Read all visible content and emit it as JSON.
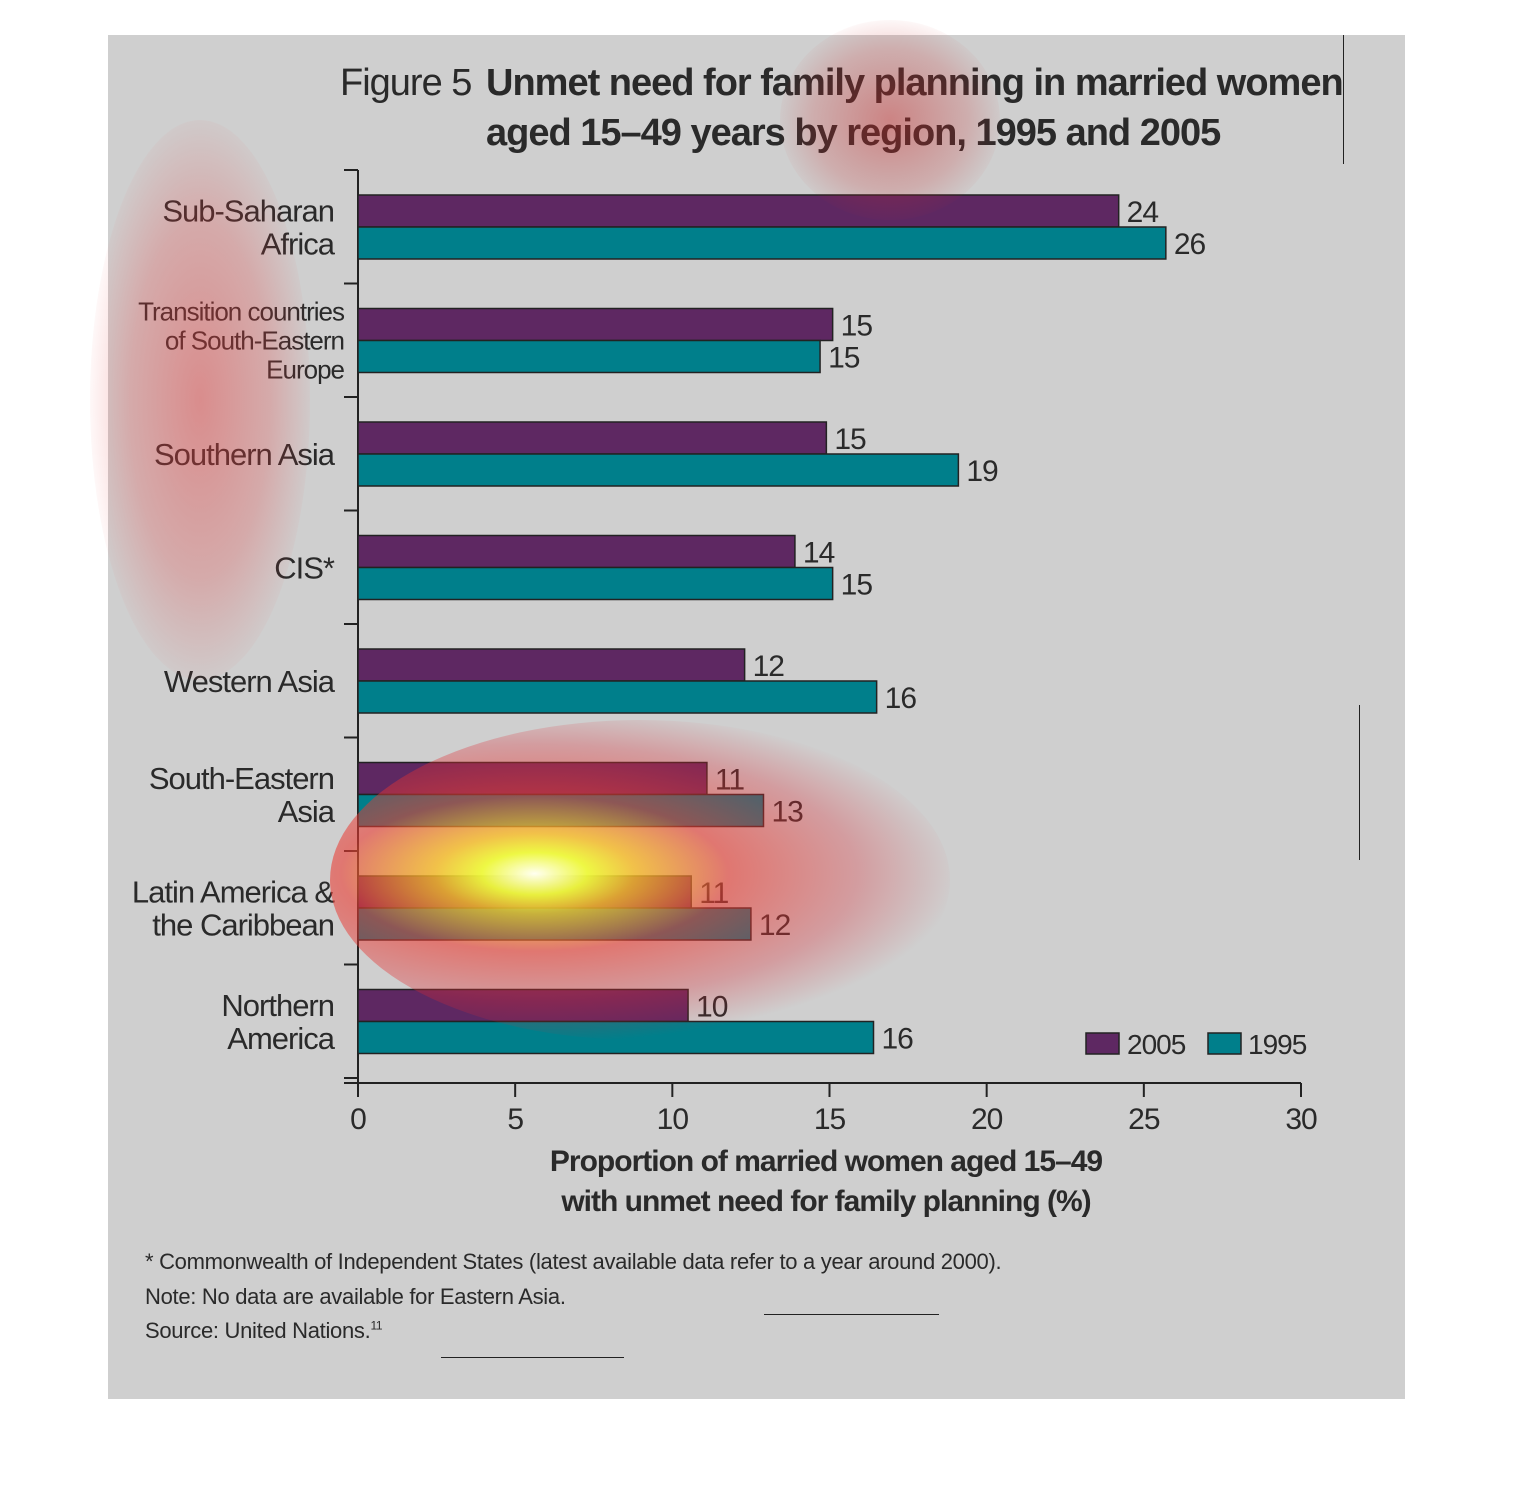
{
  "title": {
    "figure_label": "Figure 5",
    "line1": "Unmet need for family planning in married women",
    "line2": "aged 15–49 years by region, 1995 and 2005"
  },
  "footnotes": {
    "cis": "* Commonwealth of Independent States (latest available data refer to a year around 2000).",
    "note": "Note: No data are available for Eastern Asia.",
    "source": "Source: United Nations.",
    "source_ref": "11"
  },
  "chart_data": {
    "type": "bar",
    "orientation": "horizontal",
    "categories": [
      [
        "Sub-Saharan",
        "Africa"
      ],
      [
        "Transition countries",
        "of South-Eastern",
        "Europe"
      ],
      [
        "Southern Asia"
      ],
      [
        "CIS*"
      ],
      [
        "Western Asia"
      ],
      [
        "South-Eastern",
        "Asia"
      ],
      [
        "Latin America &",
        "the Caribbean"
      ],
      [
        "Northern",
        "America"
      ]
    ],
    "series": [
      {
        "name": "2005",
        "color": "#5e2862",
        "values": [
          24.2,
          15.1,
          14.9,
          13.9,
          12.3,
          11.1,
          10.6,
          10.5
        ],
        "labels": [
          "24",
          "15",
          "15",
          "14",
          "12",
          "11",
          "11",
          "10"
        ]
      },
      {
        "name": "1995",
        "color": "#007f8b",
        "values": [
          25.7,
          14.7,
          19.1,
          15.1,
          16.5,
          12.9,
          12.5,
          16.4
        ],
        "labels": [
          "26",
          "15",
          "19",
          "15",
          "16",
          "13",
          "12",
          "16"
        ]
      }
    ],
    "xlim": [
      0,
      30
    ],
    "xticks": [
      "0",
      "5",
      "10",
      "15",
      "20",
      "25",
      "30"
    ],
    "xlabel": [
      "Proportion of married women aged 15–49",
      "with unmet need for family planning (%)"
    ],
    "legend_position": "bottom-right",
    "grid": false
  }
}
